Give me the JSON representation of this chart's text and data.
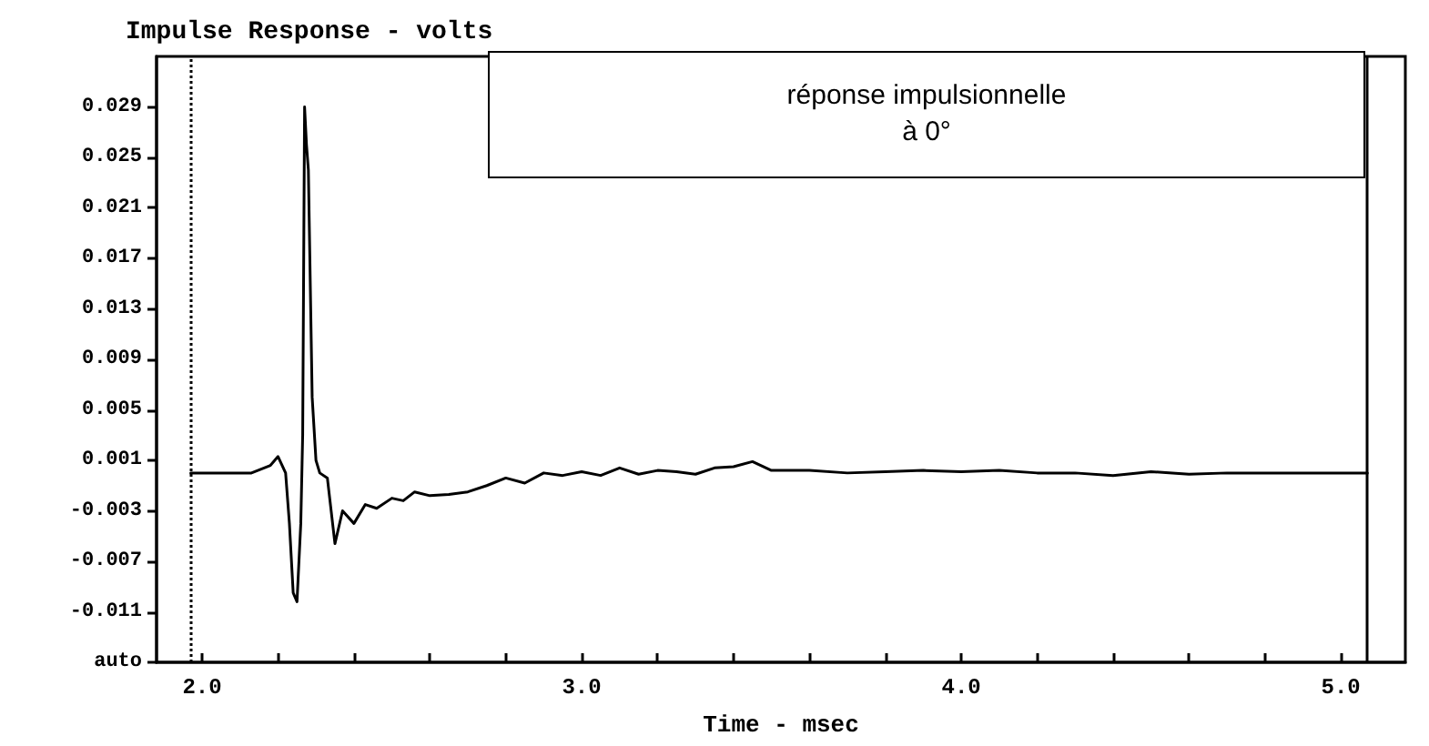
{
  "chart_data": {
    "type": "line",
    "title": "Impulse Response - volts",
    "xlabel": "Time - msec",
    "annotations": [
      "réponse impulsionnelle\nà 0°"
    ],
    "x": [
      1.97,
      2.05,
      2.13,
      2.18,
      2.2,
      2.22,
      2.23,
      2.24,
      2.25,
      2.26,
      2.265,
      2.27,
      2.275,
      2.28,
      2.29,
      2.3,
      2.31,
      2.33,
      2.35,
      2.37,
      2.4,
      2.43,
      2.46,
      2.5,
      2.53,
      2.56,
      2.6,
      2.65,
      2.7,
      2.75,
      2.8,
      2.85,
      2.9,
      2.95,
      3.0,
      3.05,
      3.1,
      3.15,
      3.2,
      3.25,
      3.3,
      3.35,
      3.4,
      3.45,
      3.5,
      3.6,
      3.7,
      3.8,
      3.9,
      4.0,
      4.1,
      4.2,
      4.3,
      4.4,
      4.5,
      4.6,
      4.7,
      4.8,
      4.9,
      5.0,
      5.07
    ],
    "series": [
      {
        "color": "#000000",
        "values": [
          0.0,
          0.0,
          0.0,
          0.0006,
          0.0013,
          0.0,
          -0.004,
          -0.0095,
          -0.0102,
          -0.004,
          0.003,
          0.029,
          0.026,
          0.024,
          0.006,
          0.001,
          0.0,
          -0.0004,
          -0.0056,
          -0.003,
          -0.004,
          -0.0025,
          -0.0028,
          -0.002,
          -0.0022,
          -0.0015,
          -0.0018,
          -0.0017,
          -0.0015,
          -0.001,
          -0.0004,
          -0.0008,
          0.0,
          -0.0002,
          0.0001,
          -0.0002,
          0.0004,
          -0.0001,
          0.0002,
          0.0001,
          -0.0001,
          0.0004,
          0.0005,
          0.0009,
          0.0002,
          0.0002,
          0.0,
          0.0001,
          0.0002,
          0.0001,
          0.0002,
          0.0,
          0.0,
          -0.0002,
          0.0001,
          -0.0001,
          0.0,
          0.0,
          0.0,
          0.0,
          0.0
        ]
      }
    ],
    "xlim": [
      1.88,
      5.17
    ],
    "xticks": [
      {
        "value": 2.0,
        "label": "2.0"
      },
      {
        "value": 2.2,
        "label": null
      },
      {
        "value": 2.4,
        "label": null
      },
      {
        "value": 2.6,
        "label": null
      },
      {
        "value": 2.8,
        "label": null
      },
      {
        "value": 3.0,
        "label": "3.0"
      },
      {
        "value": 3.2,
        "label": null
      },
      {
        "value": 3.4,
        "label": null
      },
      {
        "value": 3.6,
        "label": null
      },
      {
        "value": 3.8,
        "label": null
      },
      {
        "value": 4.0,
        "label": "4.0"
      },
      {
        "value": 4.2,
        "label": null
      },
      {
        "value": 4.4,
        "label": null
      },
      {
        "value": 4.6,
        "label": null
      },
      {
        "value": 4.8,
        "label": null
      },
      {
        "value": 5.0,
        "label": "5.0"
      }
    ],
    "ylim": [
      -0.015,
      0.033
    ],
    "yticks": [
      {
        "value": -0.015,
        "label": "auto"
      },
      -0.011,
      -0.007,
      -0.003,
      0.001,
      0.005,
      0.009,
      0.013,
      0.017,
      0.021,
      0.025,
      0.029
    ],
    "ref_lines": [
      {
        "axis": "x",
        "value": 1.97,
        "line_style": "dotted",
        "color": "#000000"
      },
      {
        "axis": "x",
        "value": 5.07,
        "line_style": "solid",
        "color": "#000000"
      }
    ],
    "grid": false,
    "marker": "none",
    "line_style": "solid"
  }
}
